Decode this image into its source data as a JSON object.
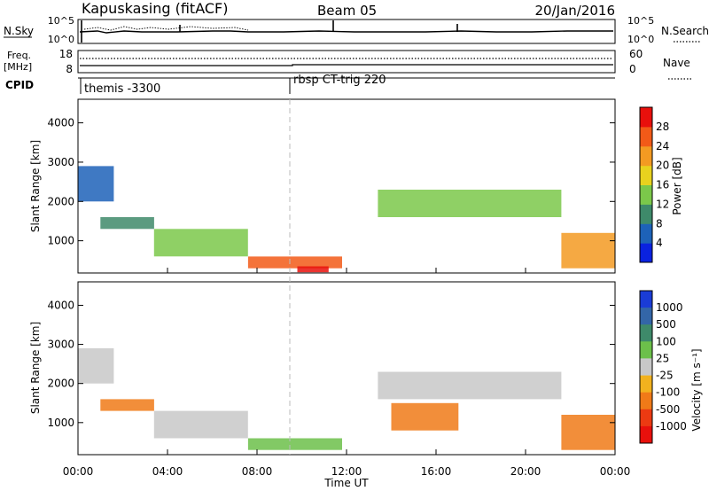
{
  "header": {
    "title": "Kapuskasing (fitACF)",
    "beam": "Beam 05",
    "date": "20/Jan/2016"
  },
  "status_panels": {
    "nsky_label": "N.Sky",
    "nsky_ticks": [
      "10^5",
      "10^0"
    ],
    "nsearch_label": "N.Search",
    "nsearch_ticks": [
      "10^5",
      "10^0"
    ],
    "freq_label": "Freq.",
    "freq_unit": "[MHz]",
    "freq_ticks": [
      "18",
      "8"
    ],
    "nave_label": "Nave",
    "nave_ticks": [
      "60",
      "0"
    ],
    "cpid_label": "CPID",
    "cpid_entries": [
      {
        "name": "themis -3300",
        "start_hour": 0
      },
      {
        "name": "rbsp CT-trig 220",
        "start_hour": 9.5
      }
    ]
  },
  "x_axis": {
    "label": "Time UT",
    "ticks": [
      "00:00",
      "04:00",
      "08:00",
      "12:00",
      "16:00",
      "20:00",
      "00:00"
    ],
    "range_hours": [
      0,
      24
    ]
  },
  "chart_data": [
    {
      "type": "heatmap",
      "panel": "power",
      "ylabel": "Slant Range [km]",
      "yticks": [
        "1000",
        "2000",
        "3000",
        "4000"
      ],
      "ylim": [
        180,
        4600
      ],
      "colorbar": {
        "label": "Power [dB]",
        "ticks": [
          "4",
          "8",
          "12",
          "16",
          "20",
          "24",
          "28"
        ],
        "colors": [
          "#0a22e0",
          "#1d62b8",
          "#3e8a6a",
          "#7bc84a",
          "#e8d21e",
          "#f39a22",
          "#f25a18",
          "#e8100c"
        ]
      },
      "regions": [
        {
          "t0": 0.0,
          "t1": 1.6,
          "r0": 2000,
          "r1": 2900,
          "level": 1
        },
        {
          "t0": 1.0,
          "t1": 3.4,
          "r0": 1300,
          "r1": 1600,
          "level": 2
        },
        {
          "t0": 3.4,
          "t1": 7.6,
          "r0": 600,
          "r1": 1300,
          "level": 3
        },
        {
          "t0": 7.6,
          "t1": 11.8,
          "r0": 300,
          "r1": 600,
          "level": 6
        },
        {
          "t0": 9.8,
          "t1": 11.2,
          "r0": 200,
          "r1": 350,
          "level": 7
        },
        {
          "t0": 13.4,
          "t1": 21.6,
          "r0": 1600,
          "r1": 2300,
          "level": 3
        },
        {
          "t0": 21.6,
          "t1": 24.0,
          "r0": 300,
          "r1": 1200,
          "level": 5
        }
      ]
    },
    {
      "type": "heatmap",
      "panel": "velocity",
      "ylabel": "Slant Range [km]",
      "yticks": [
        "1000",
        "2000",
        "3000",
        "4000"
      ],
      "ylim": [
        180,
        4600
      ],
      "colorbar": {
        "label": "Velocity [m s⁻¹]",
        "ticks": [
          "1000",
          "500",
          "100",
          "25",
          "-25",
          "-100",
          "-500",
          "-1000"
        ],
        "colors": [
          "#1a3cd6",
          "#3366a8",
          "#3e8a6a",
          "#6cc04a",
          "#c8c8c8",
          "#f2b21e",
          "#f07a18",
          "#ec3a12",
          "#e8100c"
        ]
      },
      "regions": [
        {
          "t0": 0.0,
          "t1": 1.6,
          "r0": 2000,
          "r1": 2900,
          "level": 4
        },
        {
          "t0": 1.0,
          "t1": 3.4,
          "r0": 1300,
          "r1": 1600,
          "level": 6
        },
        {
          "t0": 3.4,
          "t1": 7.6,
          "r0": 600,
          "r1": 1300,
          "level": 4
        },
        {
          "t0": 7.6,
          "t1": 11.8,
          "r0": 300,
          "r1": 600,
          "level": 3
        },
        {
          "t0": 13.4,
          "t1": 21.6,
          "r0": 1600,
          "r1": 2300,
          "level": 4
        },
        {
          "t0": 14.0,
          "t1": 17.0,
          "r0": 800,
          "r1": 1500,
          "level": 6
        },
        {
          "t0": 21.6,
          "t1": 24.0,
          "r0": 300,
          "r1": 1200,
          "level": 6
        }
      ]
    }
  ]
}
